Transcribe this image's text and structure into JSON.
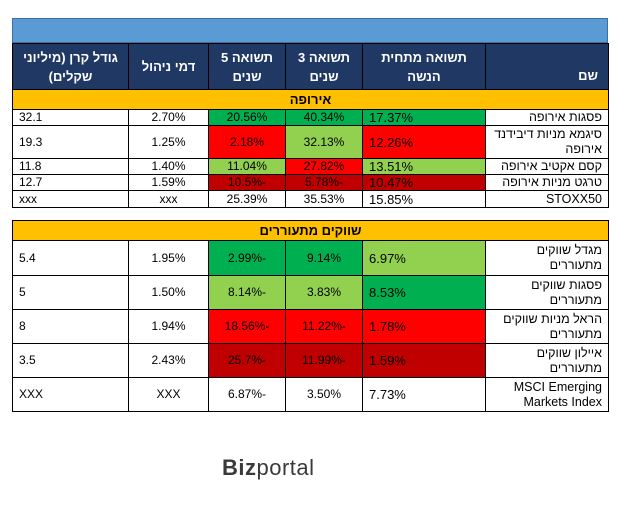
{
  "headers": {
    "name": "שם",
    "issue_return": "תשואה מתחית\nהנשה",
    "ret3": "תשואה 3\nשנים",
    "ret5": "תשואה 5\nשנים",
    "fee": "דמי ניהול",
    "size": "גודל קרן (מיליוני\nשקלים)"
  },
  "sections": [
    {
      "title": "אירופה",
      "rows": [
        {
          "name": "פסגות אירופה",
          "issue": "17.37%",
          "ret3": "40.34%",
          "ret5": "20.56%",
          "fee": "2.70%",
          "size": "32.1",
          "c_issue": "g-dark",
          "c3": "g-dark",
          "c5": "g-dark"
        },
        {
          "name": "סיגמא מניות דיבידנד\nאירופה",
          "issue": "12.26%",
          "ret3": "32.13%",
          "ret5": "2.18%",
          "fee": "1.25%",
          "size": "19.3",
          "c_issue": "red",
          "c3": "g-light",
          "c5": "red"
        },
        {
          "name": "קסם אקטיב אירופה",
          "issue": "13.51%",
          "ret3": "27.82%",
          "ret5": "11.04%",
          "fee": "1.40%",
          "size": "11.8",
          "c_issue": "g-light",
          "c3": "red",
          "c5": "g-light"
        },
        {
          "name": "טרגט מניות אירופה",
          "issue": "10.47%",
          "ret3": "-5.78%",
          "ret5": "-10.5%",
          "fee": "1.59%",
          "size": "12.7",
          "c_issue": "d-red",
          "c3": "d-red",
          "c5": "d-red"
        },
        {
          "name": "STOXX50",
          "issue": "15.85%",
          "ret3": "35.53%",
          "ret5": "25.39%",
          "fee": "xxx",
          "size": "xxx",
          "c_issue": "",
          "c3": "",
          "c5": ""
        }
      ]
    },
    {
      "title": "שווקים מתעוררים",
      "rows": [
        {
          "name": "מגדל שווקים\nמתעוררים",
          "issue": "6.97%",
          "ret3": "9.14%",
          "ret5": "-2.99%",
          "fee": "1.95%",
          "size": "5.4",
          "c_issue": "g-light",
          "c3": "g-dark",
          "c5": "g-dark"
        },
        {
          "name": "פסגות שווקים\nמתעוררים",
          "issue": "8.53%",
          "ret3": "3.83%",
          "ret5": "-8.14%",
          "fee": "1.50%",
          "size": "5",
          "c_issue": "g-dark",
          "c3": "g-light",
          "c5": "g-light"
        },
        {
          "name": "הראל מניות שווקים\nמתעוררים",
          "issue": "1.78%",
          "ret3": "-11.22%",
          "ret5": "-18.56%",
          "fee": "1.94%",
          "size": "8",
          "c_issue": "red",
          "c3": "red",
          "c5": "red"
        },
        {
          "name": "איילון שווקים\nמתעוררים",
          "issue": "1.59%",
          "ret3": "-11.99%",
          "ret5": "-25.7%",
          "fee": "2.43%",
          "size": "3.5",
          "c_issue": "d-red",
          "c3": "d-red",
          "c5": "d-red"
        },
        {
          "name": "MSCI Emerging\nMarkets Index",
          "issue": "7.73%",
          "ret3": "3.50%",
          "ret5": "-6.87%",
          "fee": "XXX",
          "size": "XXX",
          "c_issue": "",
          "c3": "",
          "c5": ""
        }
      ]
    }
  ],
  "logo": {
    "biz": "Biz",
    "portal": "portal"
  }
}
